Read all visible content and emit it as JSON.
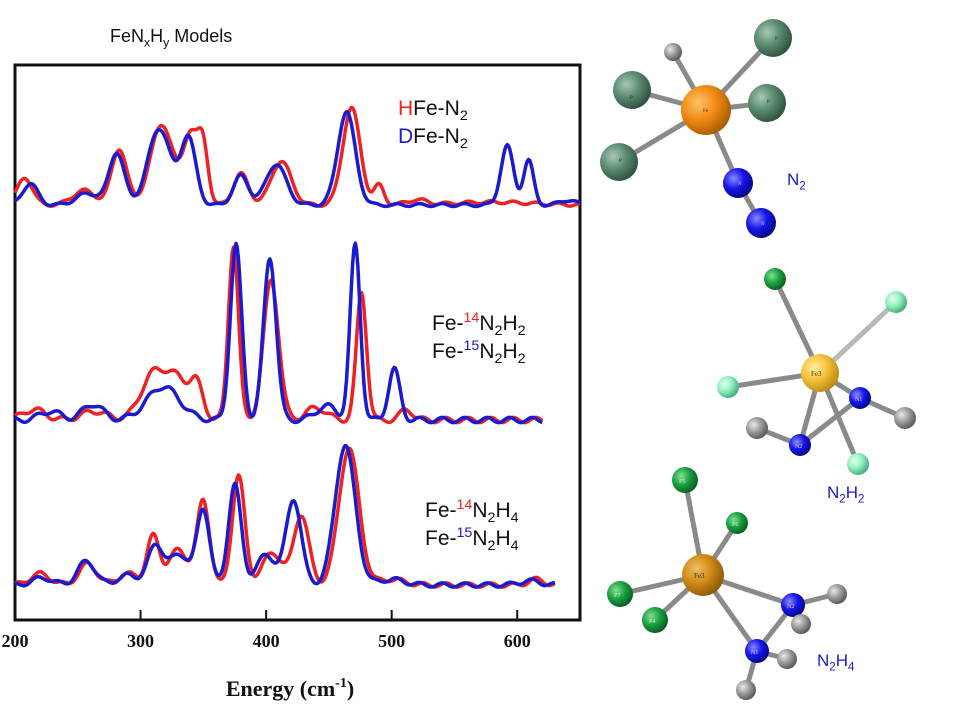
{
  "header": {
    "title_prefix": "FeN",
    "title_sub_x": "x",
    "title_mid": "H",
    "title_sub_y": "y",
    "title_suffix": " Models"
  },
  "legends": {
    "panel1": {
      "red": {
        "prefix": "H",
        "mid": "Fe-N",
        "sub": "2"
      },
      "blue": {
        "prefix": "D",
        "mid": "Fe-N",
        "sub": "2"
      }
    },
    "panel2": {
      "red": {
        "a": "Fe-",
        "iso": "14",
        "b": "N",
        "s1": "2",
        "c": "H",
        "s2": "2"
      },
      "blue": {
        "a": "Fe-",
        "iso": "15",
        "b": "N",
        "s1": "2",
        "c": "H",
        "s2": "2"
      }
    },
    "panel3": {
      "red": {
        "a": "Fe-",
        "iso": "14",
        "b": "N",
        "s1": "2",
        "c": "H",
        "s2": "4"
      },
      "blue": {
        "a": "Fe-",
        "iso": "15",
        "b": "N",
        "s1": "2",
        "c": "H",
        "s2": "4"
      }
    }
  },
  "molecules": {
    "m1": {
      "label_a": "N",
      "label_s": "2",
      "atoms": {
        "fe": "Fe",
        "p": "P",
        "n": "N"
      }
    },
    "m2": {
      "label_a": "N",
      "label_s1": "2",
      "label_b": "H",
      "label_s2": "2",
      "atoms": {
        "fe": "Fe3",
        "n1": "N1",
        "n2": "N2"
      }
    },
    "m3": {
      "label_a": "N",
      "label_s1": "2",
      "label_b": "H",
      "label_s2": "4",
      "atoms": {
        "fe": "Fe3",
        "p5": "P5",
        "p6": "P6",
        "p7": "P7",
        "p4": "P4",
        "n2": "N2",
        "n1": "N1"
      }
    }
  },
  "chart_data": {
    "type": "line",
    "xlabel": "Energy (cm",
    "xlabel_sup": "-1",
    "xlabel_close": ")",
    "xlim": [
      200,
      650
    ],
    "xticks": [
      200,
      300,
      400,
      500,
      600
    ],
    "colors": {
      "red": "#ee2222",
      "blue": "#1a1ad0"
    },
    "panels": [
      {
        "series": [
          {
            "color": "red",
            "x_end": 650,
            "peaks": [
              [
                208,
                0.28,
                6
              ],
              [
                255,
                0.15,
                9
              ],
              [
                283,
                0.58,
                6
              ],
              [
                317,
                0.83,
                9
              ],
              [
                340,
                0.72,
                6
              ],
              [
                350,
                0.55,
                4
              ],
              [
                380,
                0.32,
                6
              ],
              [
                412,
                0.45,
                8
              ],
              [
                468,
                1.0,
                7
              ],
              [
                490,
                0.2,
                4
              ],
              [
                520,
                0.05,
                8
              ],
              [
                580,
                0.03,
                30
              ]
            ]
          },
          {
            "color": "blue",
            "x_end": 650,
            "peaks": [
              [
                212,
                0.22,
                6
              ],
              [
                258,
                0.12,
                9
              ],
              [
                281,
                0.54,
                6
              ],
              [
                315,
                0.79,
                9
              ],
              [
                338,
                0.69,
                6
              ],
              [
                380,
                0.3,
                6
              ],
              [
                408,
                0.42,
                8
              ],
              [
                464,
                0.96,
                7
              ],
              [
                592,
                0.61,
                5
              ],
              [
                609,
                0.46,
                4
              ],
              [
                640,
                0.05,
                6
              ]
            ]
          }
        ]
      },
      {
        "series": [
          {
            "color": "red",
            "x_end": 620,
            "peaks": [
              [
                215,
                0.06,
                9
              ],
              [
                263,
                0.05,
                10
              ],
              [
                310,
                0.25,
                10
              ],
              [
                330,
                0.22,
                10
              ],
              [
                345,
                0.16,
                5
              ],
              [
                374,
                1.0,
                4
              ],
              [
                404,
                0.8,
                6
              ],
              [
                440,
                0.07,
                8
              ],
              [
                476,
                0.73,
                4
              ],
              [
                512,
                0.06,
                5
              ]
            ]
          },
          {
            "color": "blue",
            "x_end": 620,
            "peaks": [
              [
                228,
                0.05,
                8
              ],
              [
                262,
                0.09,
                8
              ],
              [
                318,
                0.19,
                13
              ],
              [
                376,
                1.0,
                4.5
              ],
              [
                403,
                0.93,
                5
              ],
              [
                448,
                0.08,
                8
              ],
              [
                471,
                1.0,
                4
              ],
              [
                502,
                0.29,
                4.5
              ]
            ]
          }
        ]
      },
      {
        "series": [
          {
            "color": "red",
            "x_end": 630,
            "peaks": [
              [
                220,
                0.08,
                8
              ],
              [
                258,
                0.15,
                7
              ],
              [
                290,
                0.08,
                8
              ],
              [
                310,
                0.34,
                5
              ],
              [
                330,
                0.25,
                8
              ],
              [
                350,
                0.6,
                5
              ],
              [
                378,
                0.78,
                5
              ],
              [
                405,
                0.23,
                8
              ],
              [
                428,
                0.5,
                6
              ],
              [
                466,
                0.98,
                8
              ],
              [
                500,
                0.04,
                10
              ],
              [
                615,
                0.04,
                6
              ]
            ]
          },
          {
            "color": "blue",
            "x_end": 630,
            "peaks": [
              [
                222,
                0.05,
                8
              ],
              [
                257,
                0.17,
                7
              ],
              [
                290,
                0.07,
                8
              ],
              [
                312,
                0.28,
                6
              ],
              [
                331,
                0.22,
                8
              ],
              [
                350,
                0.54,
                5
              ],
              [
                375,
                0.72,
                5
              ],
              [
                400,
                0.21,
                8
              ],
              [
                422,
                0.61,
                6
              ],
              [
                463,
                1.0,
                8
              ],
              [
                500,
                0.04,
                10
              ],
              [
                610,
                0.03,
                8
              ]
            ]
          }
        ]
      }
    ]
  }
}
